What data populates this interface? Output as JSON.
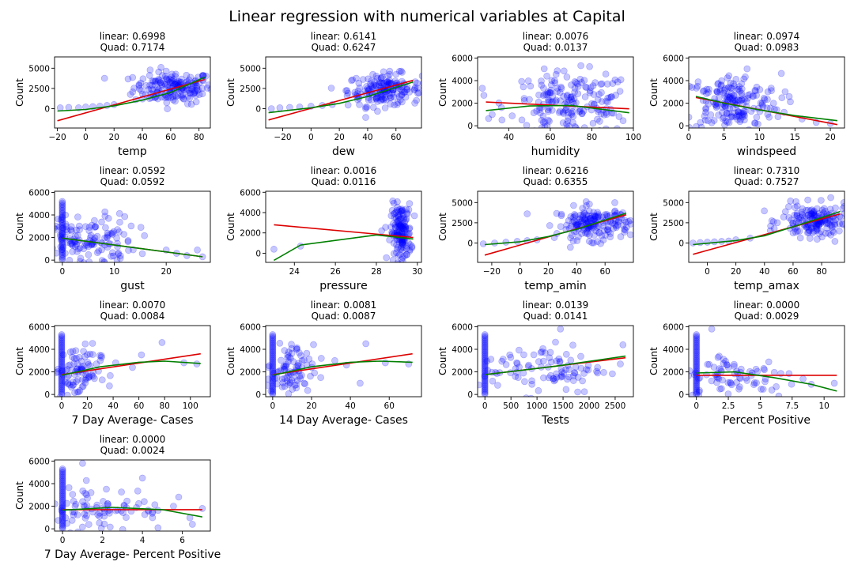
{
  "figure": {
    "title": "Linear regression with numerical variables at Capital"
  },
  "colors": {
    "points": "#0000ff",
    "linear_fit": "#dd0000",
    "quad_fit": "#008000",
    "axes": "#000000"
  },
  "chart_data": [
    {
      "type": "scatter",
      "title_linear": "linear: 0.6998",
      "title_quad": "Quad: 0.7174",
      "xlabel": "temp",
      "ylabel": "Count",
      "xlim": [
        -22,
        88
      ],
      "ylim": [
        -2400,
        6400
      ],
      "xticks": [
        -20,
        0,
        20,
        40,
        60,
        80
      ],
      "yticks": [
        0,
        2500,
        5000
      ],
      "points": {
        "cloud": {
          "center": [
            62,
            2600
          ],
          "spread": [
            14,
            1000
          ],
          "n": 180
        },
        "tail": [
          [
            -18,
            100
          ],
          [
            -12,
            150
          ],
          [
            -5,
            100
          ],
          [
            0,
            200
          ],
          [
            5,
            250
          ],
          [
            10,
            300
          ],
          [
            15,
            400
          ],
          [
            20,
            500
          ]
        ]
      },
      "linear": [
        [
          -20,
          -1500
        ],
        [
          84,
          3600
        ]
      ],
      "quad": [
        [
          -20,
          -300
        ],
        [
          0,
          -100
        ],
        [
          20,
          350
        ],
        [
          40,
          1050
        ],
        [
          60,
          2000
        ],
        [
          84,
          3900
        ]
      ]
    },
    {
      "type": "scatter",
      "title_linear": "linear: 0.6141",
      "title_quad": "Quad: 0.6247",
      "xlabel": "dew",
      "ylabel": "Count",
      "xlim": [
        -32,
        78
      ],
      "ylim": [
        -2400,
        6400
      ],
      "xticks": [
        -20,
        0,
        20,
        40,
        60
      ],
      "yticks": [
        0,
        2500,
        5000
      ],
      "points": {
        "cloud": {
          "center": [
            52,
            2300
          ],
          "spread": [
            13,
            1000
          ],
          "n": 180
        },
        "tail": [
          [
            -28,
            0
          ],
          [
            -22,
            100
          ],
          [
            -15,
            150
          ],
          [
            -8,
            200
          ],
          [
            0,
            300
          ],
          [
            8,
            400
          ],
          [
            15,
            500
          ]
        ]
      },
      "linear": [
        [
          -30,
          -1400
        ],
        [
          72,
          3500
        ]
      ],
      "quad": [
        [
          -30,
          -500
        ],
        [
          0,
          100
        ],
        [
          20,
          650
        ],
        [
          40,
          1500
        ],
        [
          72,
          3300
        ]
      ]
    },
    {
      "type": "scatter",
      "title_linear": "linear: 0.0076",
      "title_quad": "Quad: 0.0137",
      "xlabel": "humidity",
      "ylabel": "Count",
      "xlim": [
        25,
        100
      ],
      "ylim": [
        -200,
        6100
      ],
      "xticks": [
        40,
        60,
        80,
        100
      ],
      "yticks": [
        0,
        2000,
        4000,
        6000
      ],
      "points": {
        "cloud": {
          "center": [
            70,
            1900
          ],
          "spread": [
            15,
            1400
          ],
          "n": 200
        },
        "tail": [
          [
            28,
            2700
          ],
          [
            32,
            1000
          ]
        ]
      },
      "linear": [
        [
          29,
          2100
        ],
        [
          98,
          1500
        ]
      ],
      "quad": [
        [
          29,
          1350
        ],
        [
          50,
          1750
        ],
        [
          70,
          1800
        ],
        [
          98,
          1150
        ]
      ]
    },
    {
      "type": "scatter",
      "title_linear": "linear: 0.0974",
      "title_quad": "Quad: 0.0983",
      "xlabel": "windspeed",
      "ylabel": "Count",
      "xlim": [
        0,
        22
      ],
      "ylim": [
        -200,
        6100
      ],
      "xticks": [
        0,
        5,
        10,
        15,
        20
      ],
      "yticks": [
        0,
        2000,
        4000,
        6000
      ],
      "points": {
        "cloud": {
          "center": [
            6,
            2000
          ],
          "spread": [
            3.5,
            1300
          ],
          "n": 200
        },
        "tail": [
          [
            16,
            600
          ],
          [
            18,
            300
          ],
          [
            20,
            200
          ]
        ]
      },
      "linear": [
        [
          1,
          2500
        ],
        [
          21,
          100
        ]
      ],
      "quad": [
        [
          1,
          2600
        ],
        [
          5,
          2000
        ],
        [
          10,
          1400
        ],
        [
          15,
          900
        ],
        [
          21,
          450
        ]
      ]
    },
    {
      "type": "scatter",
      "title_linear": "linear: 0.0592",
      "title_quad": "Quad: 0.0592",
      "xlabel": "gust",
      "ylabel": "Count",
      "xlim": [
        -1.5,
        28.5
      ],
      "ylim": [
        -200,
        6100
      ],
      "xticks": [
        0,
        10,
        20
      ],
      "yticks": [
        0,
        2000,
        4000,
        6000
      ],
      "points": {
        "cloud": {
          "center": [
            4,
            1700
          ],
          "spread": [
            5,
            1200
          ],
          "n": 160
        },
        "column": {
          "x": 0,
          "from": 0,
          "to": 5200,
          "n": 40
        },
        "tail": [
          [
            20,
            900
          ],
          [
            22,
            600
          ],
          [
            24,
            400
          ],
          [
            26,
            900
          ],
          [
            27,
            300
          ]
        ]
      },
      "linear": [
        [
          0,
          1950
        ],
        [
          27,
          300
        ]
      ],
      "quad": [
        [
          0,
          1950
        ],
        [
          13,
          1150
        ],
        [
          27,
          300
        ]
      ]
    },
    {
      "type": "scatter",
      "title_linear": "linear: 0.0016",
      "title_quad": "Quad: 0.0116",
      "xlabel": "pressure",
      "ylabel": "Count",
      "xlim": [
        22.6,
        30.2
      ],
      "ylim": [
        -900,
        6100
      ],
      "xticks": [
        24,
        26,
        28,
        30
      ],
      "yticks": [
        0,
        2000,
        4000,
        6000
      ],
      "points": {
        "cloud": {
          "center": [
            29.2,
            2000
          ],
          "spread": [
            0.25,
            1400
          ],
          "n": 160
        },
        "tail": [
          [
            23.0,
            400
          ],
          [
            24.3,
            700
          ]
        ]
      },
      "linear": [
        [
          23.0,
          2800
        ],
        [
          29.8,
          1550
        ]
      ],
      "quad": [
        [
          23.0,
          -700
        ],
        [
          24.3,
          800
        ],
        [
          28.0,
          1800
        ],
        [
          29.8,
          1400
        ]
      ]
    },
    {
      "type": "scatter",
      "title_linear": "linear: 0.6216",
      "title_quad": "Quad: 0.6355",
      "xlabel": "temp_amin",
      "ylabel": "Count",
      "xlim": [
        -30,
        80
      ],
      "ylim": [
        -2400,
        6400
      ],
      "xticks": [
        -20,
        0,
        20,
        40,
        60
      ],
      "yticks": [
        0,
        2500,
        5000
      ],
      "points": {
        "cloud": {
          "center": [
            52,
            2400
          ],
          "spread": [
            13,
            1000
          ],
          "n": 180
        },
        "tail": [
          [
            -26,
            -100
          ],
          [
            -18,
            0
          ],
          [
            -10,
            100
          ],
          [
            -2,
            200
          ],
          [
            5,
            300
          ],
          [
            12,
            400
          ],
          [
            5,
            3600
          ]
        ]
      },
      "linear": [
        [
          -25,
          -1500
        ],
        [
          75,
          3500
        ]
      ],
      "quad": [
        [
          -25,
          -200
        ],
        [
          0,
          150
        ],
        [
          20,
          800
        ],
        [
          40,
          1700
        ],
        [
          75,
          3700
        ]
      ]
    },
    {
      "type": "scatter",
      "title_linear": "linear: 0.7310",
      "title_quad": "Quad: 0.7527",
      "xlabel": "temp_amax",
      "ylabel": "Count",
      "xlim": [
        -13,
        96
      ],
      "ylim": [
        -2400,
        6400
      ],
      "xticks": [
        0,
        20,
        40,
        60,
        80
      ],
      "yticks": [
        0,
        2500,
        5000
      ],
      "points": {
        "cloud": {
          "center": [
            76,
            2700
          ],
          "spread": [
            12,
            1000
          ],
          "n": 180
        },
        "tail": [
          [
            -10,
            0
          ],
          [
            -5,
            50
          ],
          [
            0,
            100
          ],
          [
            5,
            150
          ],
          [
            10,
            200
          ],
          [
            15,
            250
          ],
          [
            20,
            400
          ],
          [
            30,
            600
          ]
        ]
      },
      "linear": [
        [
          -10,
          -1400
        ],
        [
          93,
          3600
        ]
      ],
      "quad": [
        [
          -10,
          -200
        ],
        [
          20,
          300
        ],
        [
          40,
          900
        ],
        [
          60,
          2000
        ],
        [
          93,
          3900
        ]
      ]
    },
    {
      "type": "scatter",
      "title_linear": "linear: 0.0070",
      "title_quad": "Quad: 0.0084",
      "xlabel": "7 Day Average- Cases",
      "ylabel": "Count",
      "xlim": [
        -5.5,
        115.5
      ],
      "ylim": [
        -200,
        6100
      ],
      "xticks": [
        0,
        20,
        40,
        60,
        80,
        100
      ],
      "yticks": [
        0,
        2000,
        4000,
        6000
      ],
      "points": {
        "cloud": {
          "center": [
            12,
            2000
          ],
          "spread": [
            9,
            1200
          ],
          "n": 90
        },
        "column": {
          "x": 0,
          "from": 0,
          "to": 5300,
          "n": 45
        },
        "tail": [
          [
            30,
            3000
          ],
          [
            42,
            2800
          ],
          [
            55,
            2400
          ],
          [
            62,
            3500
          ],
          [
            78,
            4600
          ],
          [
            95,
            2800
          ],
          [
            105,
            2700
          ]
        ]
      },
      "linear": [
        [
          0,
          1750
        ],
        [
          108,
          3600
        ]
      ],
      "quad": [
        [
          0,
          1700
        ],
        [
          30,
          2450
        ],
        [
          60,
          2850
        ],
        [
          80,
          2950
        ],
        [
          108,
          2750
        ]
      ]
    },
    {
      "type": "scatter",
      "title_linear": "linear: 0.0081",
      "title_quad": "Quad: 0.0087",
      "xlabel": "14 Day Average- Cases",
      "ylabel": "Count",
      "xlim": [
        -3.6,
        76.6
      ],
      "ylim": [
        -200,
        6100
      ],
      "xticks": [
        0,
        20,
        40,
        60
      ],
      "yticks": [
        0,
        2000,
        4000,
        6000
      ],
      "points": {
        "cloud": {
          "center": [
            9,
            2000
          ],
          "spread": [
            6,
            1200
          ],
          "n": 90
        },
        "column": {
          "x": 0,
          "from": 0,
          "to": 5300,
          "n": 45
        },
        "tail": [
          [
            25,
            3200
          ],
          [
            32,
            3000
          ],
          [
            38,
            2600
          ],
          [
            45,
            1000
          ],
          [
            48,
            4500
          ],
          [
            58,
            2800
          ],
          [
            70,
            2700
          ]
        ]
      },
      "linear": [
        [
          0,
          1750
        ],
        [
          72,
          3600
        ]
      ],
      "quad": [
        [
          0,
          1700
        ],
        [
          20,
          2450
        ],
        [
          40,
          2850
        ],
        [
          55,
          2950
        ],
        [
          72,
          2850
        ]
      ]
    },
    {
      "type": "scatter",
      "title_linear": "linear: 0.0139",
      "title_quad": "Quad: 0.0141",
      "xlabel": "Tests",
      "ylabel": "Count",
      "xlim": [
        -140,
        2850
      ],
      "ylim": [
        -200,
        6100
      ],
      "xticks": [
        0,
        500,
        1000,
        1500,
        2000,
        2500
      ],
      "yticks": [
        0,
        2000,
        4000,
        6000
      ],
      "points": {
        "cloud": {
          "center": [
            1100,
            2300
          ],
          "spread": [
            600,
            1100
          ],
          "n": 100
        },
        "column": {
          "x": 0,
          "from": 0,
          "to": 5300,
          "n": 45
        },
        "tail": [
          [
            1450,
            5800
          ],
          [
            2600,
            2700
          ],
          [
            2650,
            4400
          ]
        ]
      },
      "linear": [
        [
          0,
          1750
        ],
        [
          2700,
          3250
        ]
      ],
      "quad": [
        [
          0,
          1750
        ],
        [
          1350,
          2500
        ],
        [
          2700,
          3400
        ]
      ]
    },
    {
      "type": "scatter",
      "title_linear": "linear: 0.0000",
      "title_quad": "Quad: 0.0029",
      "xlabel": "Percent Positive",
      "ylabel": "Count",
      "xlim": [
        -0.6,
        11.6
      ],
      "ylim": [
        -200,
        6100
      ],
      "xticks": [
        0.0,
        2.5,
        5.0,
        7.5,
        10.0
      ],
      "yticks": [
        0,
        2000,
        4000,
        6000
      ],
      "points": {
        "cloud": {
          "center": [
            3.0,
            1600
          ],
          "spread": [
            2.5,
            1000
          ],
          "n": 90
        },
        "column": {
          "x": 0,
          "from": 0,
          "to": 5300,
          "n": 45
        },
        "tail": [
          [
            1.2,
            5800
          ],
          [
            9.0,
            900
          ],
          [
            10.8,
            1000
          ]
        ]
      },
      "linear": [
        [
          0,
          1700
        ],
        [
          11,
          1700
        ]
      ],
      "quad": [
        [
          0,
          1900
        ],
        [
          3.0,
          2000
        ],
        [
          6.0,
          1500
        ],
        [
          9.0,
          900
        ],
        [
          11,
          300
        ]
      ]
    },
    {
      "type": "scatter",
      "title_linear": "linear: 0.0000",
      "title_quad": "Quad: 0.0024",
      "xlabel": "7 Day Average- Percent Positive",
      "ylabel": "Count",
      "xlim": [
        -0.4,
        7.4
      ],
      "ylim": [
        -200,
        6100
      ],
      "xticks": [
        0,
        2,
        4,
        6
      ],
      "yticks": [
        0,
        2000,
        4000,
        6000
      ],
      "points": {
        "cloud": {
          "center": [
            2.0,
            1800
          ],
          "spread": [
            1.6,
            1000
          ],
          "n": 90
        },
        "column": {
          "x": 0,
          "from": 0,
          "to": 5300,
          "n": 45
        },
        "tail": [
          [
            1.0,
            5800
          ],
          [
            4.0,
            4500
          ],
          [
            6.5,
            400
          ],
          [
            7.0,
            1800
          ]
        ]
      },
      "linear": [
        [
          0,
          1700
        ],
        [
          7,
          1700
        ]
      ],
      "quad": [
        [
          0,
          1650
        ],
        [
          2.5,
          1900
        ],
        [
          5.0,
          1700
        ],
        [
          7,
          1050
        ]
      ]
    }
  ]
}
